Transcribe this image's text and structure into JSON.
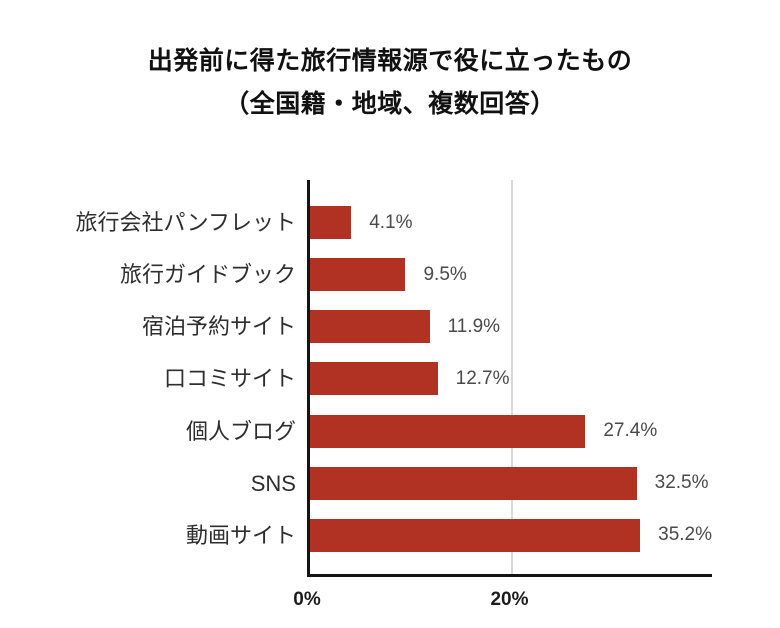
{
  "title": {
    "line1": "出発前に得た旅行情報源で役に立ったもの",
    "line2": "（全国籍・地域、複数回答）"
  },
  "chart_data": {
    "type": "bar",
    "orientation": "horizontal",
    "title": "出発前に得た旅行情報源で役に立ったもの（全国籍・地域、複数回答）",
    "categories": [
      "旅行会社パンフレット",
      "旅行ガイドブック",
      "宿泊予約サイト",
      "口コミサイト",
      "個人ブログ",
      "SNS",
      "動画サイト"
    ],
    "values": [
      4.1,
      9.5,
      11.9,
      12.7,
      27.4,
      32.5,
      35.2
    ],
    "value_labels": [
      "4.1%",
      "9.5%",
      "11.9%",
      "12.7%",
      "27.4%",
      "32.5%",
      "35.2%"
    ],
    "x_ticks": [
      "0%",
      "20%"
    ],
    "x_tick_values": [
      0,
      20
    ],
    "xlim": [
      0,
      40
    ],
    "gridline_value": 20,
    "bar_color": "#b13123",
    "axis_color": "#141414",
    "gridline_color": "#d9d9d9",
    "legend": "none",
    "grid": "single vertical gridline at 20%"
  }
}
